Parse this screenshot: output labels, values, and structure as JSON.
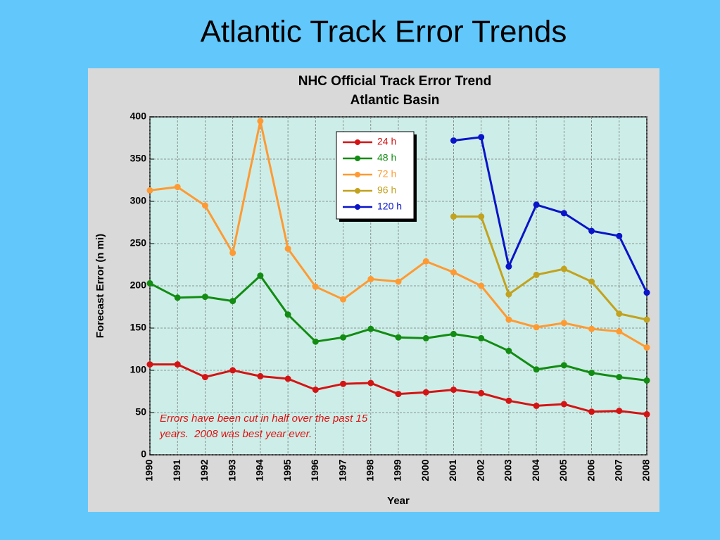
{
  "slide": {
    "title": "Atlantic Track Error Trends"
  },
  "chart_data": {
    "type": "line",
    "title": "NHC Official Track Error Trend",
    "subtitle": "Atlantic Basin",
    "xlabel": "Year",
    "ylabel": "Forecast Error (n mi)",
    "annotation": [
      "Errors have been cut in half over the past 15",
      "years.  2008 was best year ever."
    ],
    "annotation_color": "#e01010",
    "categories": [
      "1990",
      "1991",
      "1992",
      "1993",
      "1994",
      "1995",
      "1996",
      "1997",
      "1998",
      "1999",
      "2000",
      "2001",
      "2002",
      "2003",
      "2004",
      "2005",
      "2006",
      "2007",
      "2008"
    ],
    "series": [
      {
        "name": "24 h",
        "color": "#d41414",
        "values": [
          107,
          107,
          92,
          100,
          93,
          90,
          77,
          84,
          85,
          72,
          74,
          77,
          73,
          64,
          58,
          60,
          51,
          52,
          48
        ]
      },
      {
        "name": "48 h",
        "color": "#128c12",
        "values": [
          203,
          186,
          187,
          182,
          212,
          166,
          134,
          139,
          149,
          139,
          138,
          143,
          138,
          123,
          101,
          106,
          97,
          92,
          88
        ]
      },
      {
        "name": "72 h",
        "color": "#ff9a33",
        "values": [
          313,
          317,
          295,
          239,
          395,
          244,
          199,
          184,
          208,
          205,
          229,
          216,
          200,
          160,
          151,
          156,
          149,
          146,
          127
        ]
      },
      {
        "name": "96 h",
        "color": "#c2a21e",
        "values": [
          null,
          null,
          null,
          null,
          null,
          null,
          null,
          null,
          null,
          null,
          null,
          282,
          282,
          190,
          213,
          220,
          205,
          167,
          160
        ]
      },
      {
        "name": "120 h",
        "color": "#0a14c8",
        "values": [
          null,
          null,
          null,
          null,
          null,
          null,
          null,
          null,
          null,
          null,
          null,
          372,
          376,
          223,
          296,
          286,
          265,
          259,
          192
        ]
      }
    ],
    "ylim": [
      0,
      400
    ],
    "yticks": [
      0,
      50,
      100,
      150,
      200,
      250,
      300,
      350,
      400
    ],
    "grid": true,
    "legend": "top-center"
  }
}
